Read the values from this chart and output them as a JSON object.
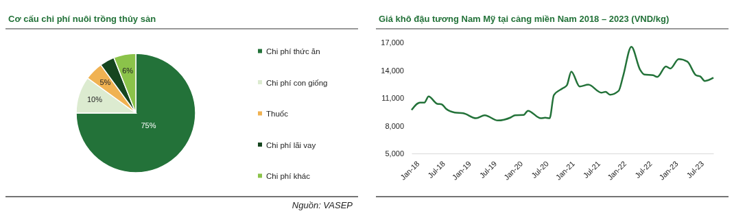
{
  "chart_data": [
    {
      "type": "pie",
      "title": "Cơ cấu chi phí nuôi trồng thủy sản",
      "categories": [
        "Chi phí thức ăn",
        "Chi phí con giống",
        "Thuốc",
        "Chi phí lãi vay",
        "Chi phí khác"
      ],
      "values": [
        75,
        10,
        5,
        4,
        6
      ],
      "colors": [
        "#237239",
        "#dcebd0",
        "#f0b252",
        "#16451f",
        "#8bc34a"
      ],
      "value_labels": [
        "75%",
        "10%",
        "5%",
        null,
        "6%"
      ],
      "legend": "right",
      "annotations": [
        "Nguồn: VASEP"
      ]
    },
    {
      "type": "line",
      "title": "Giá khô đậu tương Nam Mỹ tại cảng miền Nam 2018 – 2023 (VND/kg)",
      "x": [
        "2018-01",
        "2018-03",
        "2018-04",
        "2018-05",
        "2018-07",
        "2018-08",
        "2018-09",
        "2018-11",
        "2019-01",
        "2019-04",
        "2019-06",
        "2019-09",
        "2019-12",
        "2020-01",
        "2020-03",
        "2020-04",
        "2020-07",
        "2020-08",
        "2020-09",
        "2020-10",
        "2020-12",
        "2021-01",
        "2021-02",
        "2021-04",
        "2021-06",
        "2021-09",
        "2021-10",
        "2021-11",
        "2022-01",
        "2022-02",
        "2022-04",
        "2022-06",
        "2022-07",
        "2022-09",
        "2022-10",
        "2022-12",
        "2023-01",
        "2023-03",
        "2023-05",
        "2023-07",
        "2023-08",
        "2023-09",
        "2023-11"
      ],
      "series": [
        {
          "color": "#237239",
          "values": [
            9700,
            10500,
            10500,
            11170,
            10370,
            10320,
            9830,
            9430,
            9350,
            8810,
            9130,
            8570,
            8890,
            9130,
            9160,
            9620,
            8810,
            8870,
            8810,
            11310,
            12030,
            12380,
            13860,
            12250,
            12440,
            11580,
            11660,
            11360,
            11770,
            13320,
            16540,
            14070,
            13540,
            13460,
            13270,
            14400,
            14180,
            15200,
            14930,
            13460,
            13320,
            12840,
            13190
          ]
        }
      ],
      "xlim": [
        "2018-01",
        "2023-11"
      ],
      "xticks": [
        {
          "value": "2018-01",
          "label": "Jan-18"
        },
        {
          "value": "2018-07",
          "label": "Jul-18"
        },
        {
          "value": "2019-01",
          "label": "Jan-19"
        },
        {
          "value": "2019-07",
          "label": "Jul-19"
        },
        {
          "value": "2020-01",
          "label": "Jan-20"
        },
        {
          "value": "2020-07",
          "label": "Jul-20"
        },
        {
          "value": "2021-01",
          "label": "Jan-21"
        },
        {
          "value": "2021-07",
          "label": "Jul-21"
        },
        {
          "value": "2022-01",
          "label": "Jan-22"
        },
        {
          "value": "2022-07",
          "label": "Jul-22"
        },
        {
          "value": "2023-01",
          "label": "Jan-23"
        },
        {
          "value": "2023-07",
          "label": "Jul-23"
        }
      ],
      "ylim": [
        5000,
        17000
      ],
      "yticks": [
        {
          "value": 5000,
          "label": "5,000"
        },
        {
          "value": 8000,
          "label": "8,000"
        },
        {
          "value": 11000,
          "label": "11,000"
        },
        {
          "value": 14000,
          "label": "14,000"
        },
        {
          "value": 17000,
          "label": "17,000"
        }
      ],
      "line_style": "solid",
      "marker": "none"
    }
  ]
}
